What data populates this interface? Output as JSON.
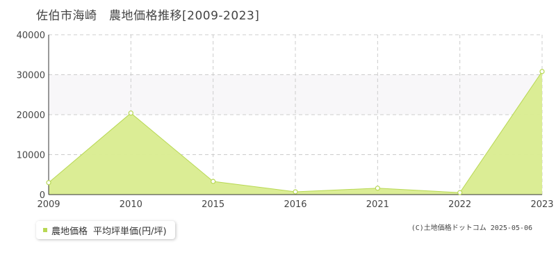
{
  "title": "佐伯市海崎　農地価格推移[2009-2023]",
  "legend": {
    "label": "農地価格",
    "unit_label": "平均坪単価(円/坪)"
  },
  "copyright": "(C)土地価格ドットコム 2025-05-06",
  "colors": {
    "fill": "#d9ec8f",
    "line": "#b8d854",
    "band": "#f8f7f9",
    "grid": "#cccccc",
    "axis": "#333333"
  },
  "chart_data": {
    "type": "area",
    "title": "佐伯市海崎　農地価格推移[2009-2023]",
    "xlabel": "",
    "ylabel": "",
    "categories": [
      "2009",
      "2010",
      "2015",
      "2016",
      "2021",
      "2022",
      "2023"
    ],
    "series": [
      {
        "name": "農地価格",
        "values": [
          3000,
          20400,
          3300,
          700,
          1600,
          500,
          30800
        ]
      }
    ],
    "ylim": [
      0,
      40000
    ],
    "yticks": [
      "0",
      "10000",
      "20000",
      "30000",
      "40000"
    ],
    "grid": true,
    "legend_position": "bottom-left"
  }
}
